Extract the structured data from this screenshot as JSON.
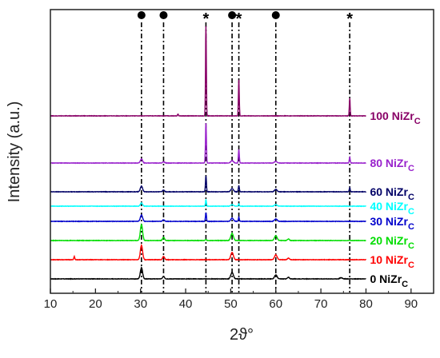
{
  "chart_data": {
    "type": "line",
    "title": "",
    "xlabel": "2ϑ°",
    "ylabel": "Intensity (a.u.)",
    "xlim": [
      10,
      95
    ],
    "xticks": [
      10,
      20,
      30,
      40,
      50,
      60,
      70,
      80,
      90
    ],
    "x_range_data": [
      10,
      80
    ],
    "yticks_shown": false,
    "grid": false,
    "legend": "right-of-curves",
    "reference_lines": {
      "style": "dash-dot",
      "color": "#000000",
      "lines": [
        {
          "x": 30.2,
          "symbol": "circle"
        },
        {
          "x": 35.1,
          "symbol": "circle"
        },
        {
          "x": 44.5,
          "symbol": "star"
        },
        {
          "x": 50.3,
          "symbol": "circle"
        },
        {
          "x": 51.8,
          "symbol": "star"
        },
        {
          "x": 60.0,
          "symbol": "circle"
        },
        {
          "x": 76.4,
          "symbol": "star"
        }
      ],
      "star_glyph": "*"
    },
    "series": [
      {
        "name": "0 NiZr",
        "name_sub": "C",
        "color": "#000000",
        "offset": 0,
        "noise": 0.25,
        "peaks": [
          {
            "x": 30.2,
            "h": 14,
            "w": 0.35
          },
          {
            "x": 35.1,
            "h": 3,
            "w": 0.3
          },
          {
            "x": 50.3,
            "h": 8,
            "w": 0.4
          },
          {
            "x": 60.0,
            "h": 5,
            "w": 0.4
          },
          {
            "x": 62.8,
            "h": 2,
            "w": 0.3
          },
          {
            "x": 74.5,
            "h": 1.5,
            "w": 0.4
          }
        ]
      },
      {
        "name": "10 NiZr",
        "name_sub": "C",
        "color": "#ff0000",
        "offset": 24,
        "noise": 0.25,
        "peaks": [
          {
            "x": 15.3,
            "h": 4,
            "w": 0.15
          },
          {
            "x": 30.2,
            "h": 18,
            "w": 0.35
          },
          {
            "x": 35.1,
            "h": 4,
            "w": 0.3
          },
          {
            "x": 50.3,
            "h": 9,
            "w": 0.4
          },
          {
            "x": 60.0,
            "h": 6,
            "w": 0.4
          },
          {
            "x": 62.8,
            "h": 2,
            "w": 0.3
          }
        ]
      },
      {
        "name": "20 NiZr",
        "name_sub": "C",
        "color": "#00dd00",
        "offset": 48,
        "noise": 0.25,
        "peaks": [
          {
            "x": 30.2,
            "h": 20,
            "w": 0.35
          },
          {
            "x": 35.1,
            "h": 4,
            "w": 0.3
          },
          {
            "x": 44.5,
            "h": 1.5,
            "w": 0.2
          },
          {
            "x": 50.3,
            "h": 9,
            "w": 0.4
          },
          {
            "x": 60.0,
            "h": 6,
            "w": 0.4
          },
          {
            "x": 62.8,
            "h": 2,
            "w": 0.3
          }
        ]
      },
      {
        "name": "30 NiZr",
        "name_sub": "C",
        "color": "#0000cc",
        "offset": 72,
        "noise": 0.25,
        "peaks": [
          {
            "x": 30.2,
            "h": 8,
            "w": 0.35
          },
          {
            "x": 35.1,
            "h": 2,
            "w": 0.3
          },
          {
            "x": 44.5,
            "h": 11,
            "w": 0.15
          },
          {
            "x": 50.3,
            "h": 4,
            "w": 0.4
          },
          {
            "x": 51.8,
            "h": 5,
            "w": 0.15
          },
          {
            "x": 60.0,
            "h": 3,
            "w": 0.4
          }
        ]
      },
      {
        "name": "40 NiZr",
        "name_sub": "C",
        "color": "#00ffff",
        "offset": 91,
        "noise": 0.2,
        "peaks": [
          {
            "x": 30.2,
            "h": 4,
            "w": 0.35
          },
          {
            "x": 44.5,
            "h": 8,
            "w": 0.15
          },
          {
            "x": 50.3,
            "h": 2,
            "w": 0.4
          },
          {
            "x": 51.8,
            "h": 3,
            "w": 0.15
          },
          {
            "x": 60.0,
            "h": 2,
            "w": 0.4
          }
        ]
      },
      {
        "name": "60 NiZr",
        "name_sub": "C",
        "color": "#000066",
        "offset": 109,
        "noise": 0.25,
        "peaks": [
          {
            "x": 30.2,
            "h": 7,
            "w": 0.35
          },
          {
            "x": 35.1,
            "h": 2,
            "w": 0.3
          },
          {
            "x": 44.5,
            "h": 20,
            "w": 0.15
          },
          {
            "x": 50.3,
            "h": 4,
            "w": 0.4
          },
          {
            "x": 51.8,
            "h": 8,
            "w": 0.15
          },
          {
            "x": 60.0,
            "h": 3,
            "w": 0.4
          },
          {
            "x": 76.4,
            "h": 5,
            "w": 0.15
          }
        ]
      },
      {
        "name": "80 NiZr",
        "name_sub": "C",
        "color": "#9922cc",
        "offset": 145,
        "noise": 0.25,
        "peaks": [
          {
            "x": 30.2,
            "h": 5,
            "w": 0.35
          },
          {
            "x": 35.1,
            "h": 1.5,
            "w": 0.3
          },
          {
            "x": 44.5,
            "h": 50,
            "w": 0.15
          },
          {
            "x": 50.3,
            "h": 3,
            "w": 0.4
          },
          {
            "x": 51.8,
            "h": 17,
            "w": 0.15
          },
          {
            "x": 60.0,
            "h": 2,
            "w": 0.4
          },
          {
            "x": 76.4,
            "h": 7,
            "w": 0.15
          }
        ]
      },
      {
        "name": "100 NiZr",
        "name_sub": "C",
        "color": "#880066",
        "offset": 204,
        "noise": 0.25,
        "peaks": [
          {
            "x": 38.3,
            "h": 2,
            "w": 0.15
          },
          {
            "x": 44.5,
            "h": 112,
            "w": 0.13
          },
          {
            "x": 51.8,
            "h": 45,
            "w": 0.13
          },
          {
            "x": 76.4,
            "h": 22,
            "w": 0.13
          }
        ]
      }
    ]
  }
}
